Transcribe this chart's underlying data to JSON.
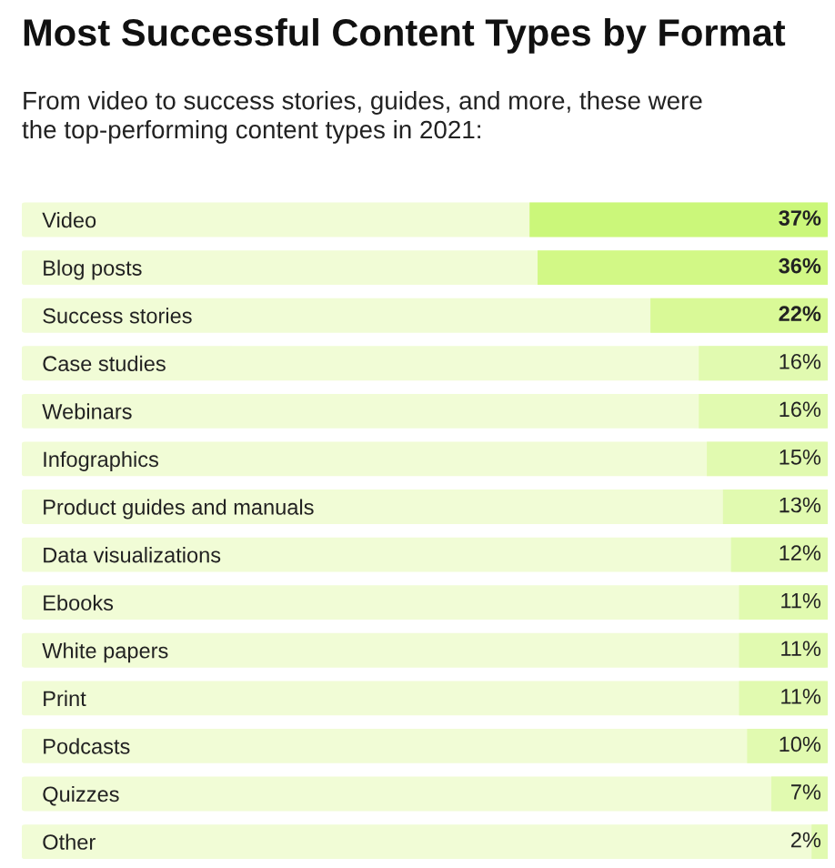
{
  "chart_data": {
    "type": "bar",
    "orientation": "horizontal",
    "title": "Most Successful Content Types by Format",
    "subtitle": "From video to success stories, guides, and more, these were\nthe top-performing content types in 2021:",
    "categories": [
      "Video",
      "Blog posts",
      "Success stories",
      "Case studies",
      "Webinars",
      "Infographics",
      "Product guides and manuals",
      "Data visualizations",
      "Ebooks",
      "White papers",
      "Print",
      "Podcasts",
      "Quizzes",
      "Other"
    ],
    "values": [
      37,
      36,
      22,
      16,
      16,
      15,
      13,
      12,
      11,
      11,
      11,
      10,
      7,
      2
    ],
    "value_labels": [
      "37%",
      "36%",
      "22%",
      "16%",
      "16%",
      "15%",
      "13%",
      "12%",
      "11%",
      "11%",
      "11%",
      "10%",
      "7%",
      "2%"
    ],
    "colors": [
      "#cbf77a",
      "#d2f886",
      "#d9f997",
      "#e1fab0",
      "#e1fab0",
      "#e1fab0",
      "#e1fab0",
      "#e1fab0",
      "#e1fab0",
      "#e1fab0",
      "#e1fab0",
      "#e1fab0",
      "#e1fab0",
      "#e1fab0"
    ],
    "xlim": [
      100,
      0
    ],
    "tick_labels": "y",
    "grid": false,
    "legend": false
  }
}
